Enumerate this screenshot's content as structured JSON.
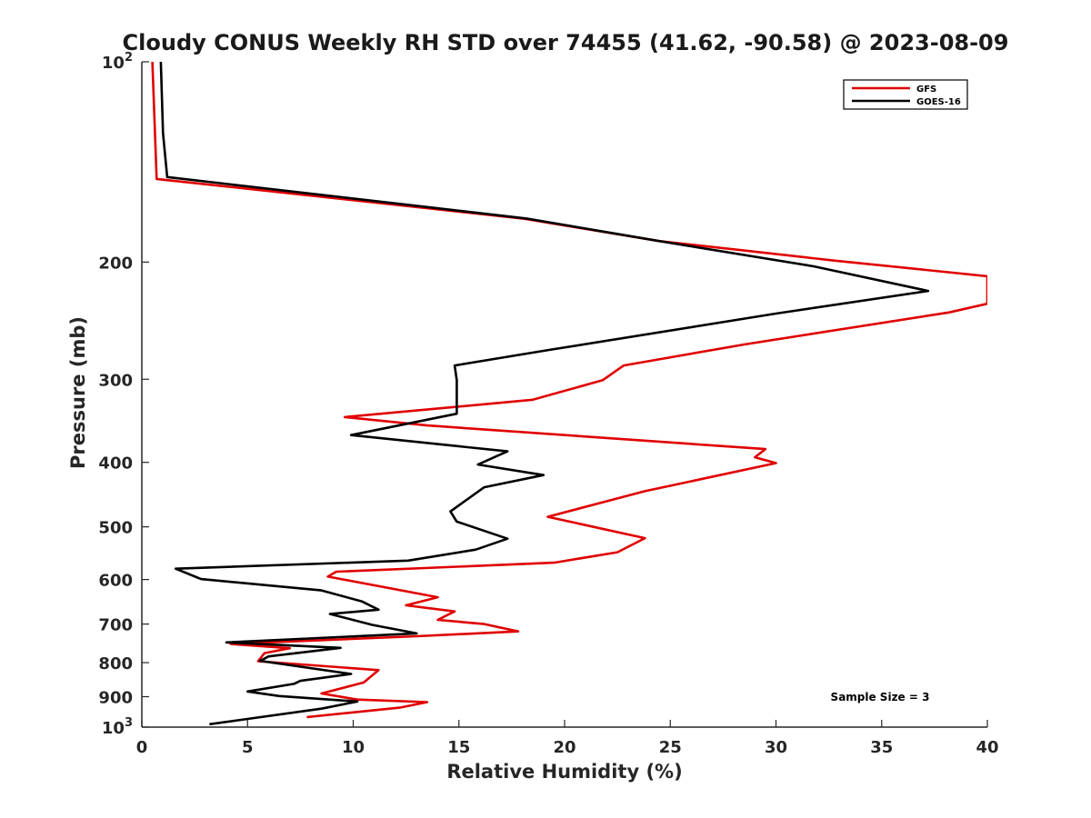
{
  "chart_data": {
    "type": "line",
    "title": "Cloudy CONUS Weekly RH STD over 74455 (41.62, -90.58) @ 2023-08-09",
    "xlabel": "Relative Humidity (%)",
    "ylabel": "Pressure (mb)",
    "xlim": [
      0,
      40
    ],
    "ylim": [
      100,
      1000
    ],
    "y_scale": "log",
    "y_reversed": true,
    "grid": false,
    "legend_position": "top-right",
    "x_ticks": [
      0,
      5,
      10,
      15,
      20,
      25,
      30,
      35,
      40
    ],
    "x_tick_labels": [
      "0",
      "5",
      "10",
      "15",
      "20",
      "25",
      "30",
      "35",
      "40"
    ],
    "y_ticks": [
      100,
      200,
      300,
      400,
      500,
      600,
      700,
      800,
      900,
      1000
    ],
    "y_tick_labels": [
      {
        "base": "10",
        "sup": "2"
      },
      {
        "base": "200",
        "sup": ""
      },
      {
        "base": "300",
        "sup": ""
      },
      {
        "base": "400",
        "sup": ""
      },
      {
        "base": "500",
        "sup": ""
      },
      {
        "base": "600",
        "sup": ""
      },
      {
        "base": "700",
        "sup": ""
      },
      {
        "base": "800",
        "sup": ""
      },
      {
        "base": "900",
        "sup": ""
      },
      {
        "base": "10",
        "sup": "3"
      }
    ],
    "annotation": "Sample Size = 3",
    "series": [
      {
        "name": "GFS",
        "color": "#e00000",
        "points": [
          [
            0.5,
            100
          ],
          [
            0.7,
            150
          ],
          [
            18.0,
            172
          ],
          [
            24.5,
            186
          ],
          [
            32.8,
            199
          ],
          [
            40.0,
            210
          ],
          [
            40.0,
            231
          ],
          [
            38.2,
            238
          ],
          [
            28.5,
            266
          ],
          [
            22.8,
            286
          ],
          [
            21.8,
            301
          ],
          [
            18.5,
            322
          ],
          [
            9.6,
            342
          ],
          [
            13.5,
            352
          ],
          [
            29.5,
            382
          ],
          [
            29.0,
            393
          ],
          [
            30.0,
            401
          ],
          [
            23.8,
            442
          ],
          [
            19.2,
            483
          ],
          [
            23.8,
            520
          ],
          [
            22.5,
            546
          ],
          [
            19.5,
            566
          ],
          [
            9.2,
            584
          ],
          [
            8.8,
            594
          ],
          [
            14.0,
            638
          ],
          [
            12.5,
            656
          ],
          [
            14.8,
            670
          ],
          [
            14.0,
            690
          ],
          [
            16.2,
            700
          ],
          [
            17.8,
            718
          ],
          [
            13.0,
            730
          ],
          [
            4.2,
            750
          ],
          [
            7.0,
            761
          ],
          [
            5.8,
            774
          ],
          [
            5.5,
            796
          ],
          [
            11.2,
            821
          ],
          [
            10.5,
            857
          ],
          [
            8.5,
            890
          ],
          [
            10.2,
            909
          ],
          [
            13.5,
            917
          ],
          [
            12.2,
            935
          ],
          [
            7.8,
            966
          ]
        ]
      },
      {
        "name": "GOES-16",
        "color": "#000000",
        "points": [
          [
            0.9,
            100
          ],
          [
            1.0,
            128
          ],
          [
            1.2,
            149
          ],
          [
            18.2,
            172
          ],
          [
            24.5,
            186
          ],
          [
            31.8,
            203
          ],
          [
            37.2,
            221
          ],
          [
            30.0,
            239
          ],
          [
            19.3,
            271
          ],
          [
            14.8,
            286
          ],
          [
            14.9,
            301
          ],
          [
            14.9,
            338
          ],
          [
            9.9,
            364
          ],
          [
            17.3,
            385
          ],
          [
            15.9,
            403
          ],
          [
            19.0,
            418
          ],
          [
            16.2,
            436
          ],
          [
            14.6,
            474
          ],
          [
            14.9,
            491
          ],
          [
            17.3,
            521
          ],
          [
            15.8,
            541
          ],
          [
            12.6,
            562
          ],
          [
            1.6,
            578
          ],
          [
            2.8,
            599
          ],
          [
            8.5,
            623
          ],
          [
            10.4,
            647
          ],
          [
            11.2,
            666
          ],
          [
            8.9,
            676
          ],
          [
            10.9,
            702
          ],
          [
            13.0,
            723
          ],
          [
            4.0,
            746
          ],
          [
            9.4,
            760
          ],
          [
            6.0,
            783
          ],
          [
            5.6,
            795
          ],
          [
            9.9,
            832
          ],
          [
            7.5,
            852
          ],
          [
            7.2,
            861
          ],
          [
            5.0,
            884
          ],
          [
            6.5,
            898
          ],
          [
            10.2,
            915
          ],
          [
            8.5,
            938
          ],
          [
            5.0,
            972
          ],
          [
            3.2,
            990
          ]
        ]
      }
    ]
  }
}
